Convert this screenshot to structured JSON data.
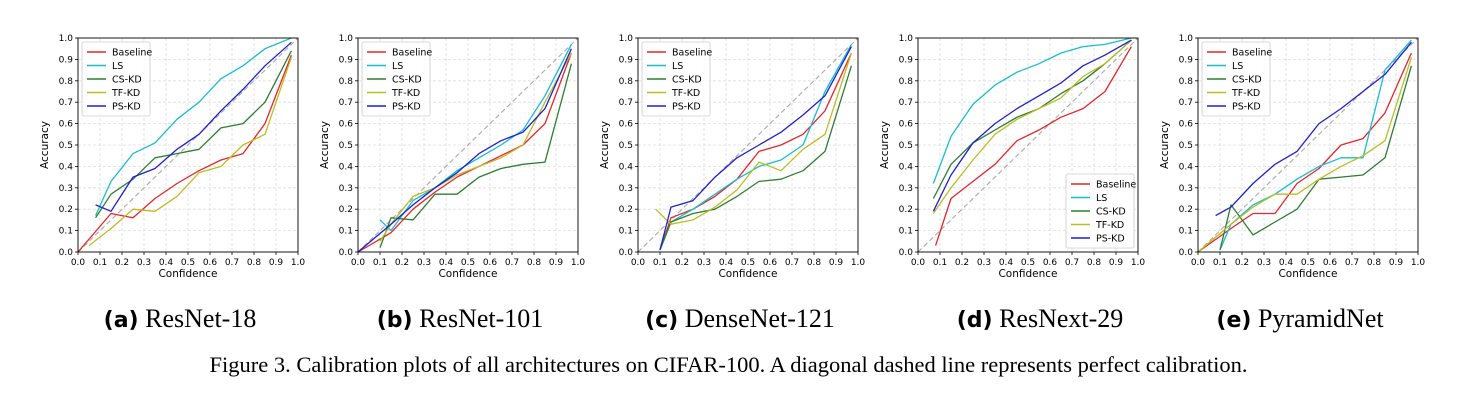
{
  "figure_caption": "Figure 3. Calibration plots of all architectures on CIFAR-100. A diagonal dashed line represents perfect calibration.",
  "colors": {
    "Baseline": "#e8252a",
    "LS": "#17becf",
    "CS-KD": "#2e7d32",
    "TF-KD": "#bcbd22",
    "PS-KD": "#1f1fd0",
    "diagonal": "#aaaaaa",
    "grid": "#dddddd"
  },
  "chart_data": [
    {
      "type": "line",
      "label": "(a)",
      "title": "ResNet-18",
      "xlabel": "Confidence",
      "ylabel": "Accuracy",
      "xlim": [
        0,
        1
      ],
      "ylim": [
        0,
        1
      ],
      "xticks": [
        "0.0",
        "0.1",
        "0.2",
        "0.3",
        "0.4",
        "0.5",
        "0.6",
        "0.7",
        "0.8",
        "0.9",
        "1.0"
      ],
      "yticks": [
        "0.0",
        "0.1",
        "0.2",
        "0.3",
        "0.4",
        "0.5",
        "0.6",
        "0.7",
        "0.8",
        "0.9",
        "1.0"
      ],
      "grid": true,
      "legend_position": "top-left",
      "series": [
        {
          "name": "Baseline",
          "x": [
            0.0,
            0.15,
            0.25,
            0.35,
            0.45,
            0.55,
            0.65,
            0.75,
            0.85,
            0.97
          ],
          "y": [
            0.0,
            0.18,
            0.16,
            0.25,
            0.32,
            0.38,
            0.43,
            0.46,
            0.6,
            0.92
          ]
        },
        {
          "name": "LS",
          "x": [
            0.08,
            0.15,
            0.25,
            0.35,
            0.45,
            0.55,
            0.65,
            0.75,
            0.85,
            0.97
          ],
          "y": [
            0.17,
            0.33,
            0.46,
            0.51,
            0.62,
            0.7,
            0.81,
            0.87,
            0.95,
            1.0
          ]
        },
        {
          "name": "CS-KD",
          "x": [
            0.08,
            0.15,
            0.25,
            0.35,
            0.45,
            0.55,
            0.65,
            0.75,
            0.85,
            0.97
          ],
          "y": [
            0.16,
            0.27,
            0.34,
            0.44,
            0.46,
            0.48,
            0.58,
            0.6,
            0.7,
            0.94
          ]
        },
        {
          "name": "TF-KD",
          "x": [
            0.05,
            0.15,
            0.25,
            0.35,
            0.45,
            0.55,
            0.65,
            0.75,
            0.85,
            0.97
          ],
          "y": [
            0.03,
            0.11,
            0.2,
            0.19,
            0.26,
            0.37,
            0.4,
            0.5,
            0.55,
            0.91
          ]
        },
        {
          "name": "PS-KD",
          "x": [
            0.08,
            0.15,
            0.25,
            0.35,
            0.45,
            0.55,
            0.65,
            0.75,
            0.85,
            0.97
          ],
          "y": [
            0.22,
            0.19,
            0.35,
            0.39,
            0.48,
            0.55,
            0.66,
            0.76,
            0.87,
            0.98
          ]
        }
      ]
    },
    {
      "type": "line",
      "label": "(b)",
      "title": "ResNet-101",
      "xlabel": "Confidence",
      "ylabel": "Accuracy",
      "xlim": [
        0,
        1
      ],
      "ylim": [
        0,
        1
      ],
      "xticks": [
        "0.0",
        "0.1",
        "0.2",
        "0.3",
        "0.4",
        "0.5",
        "0.6",
        "0.7",
        "0.8",
        "0.9",
        "1.0"
      ],
      "yticks": [
        "0.0",
        "0.1",
        "0.2",
        "0.3",
        "0.4",
        "0.5",
        "0.6",
        "0.7",
        "0.8",
        "0.9",
        "1.0"
      ],
      "grid": true,
      "legend_position": "top-left",
      "series": [
        {
          "name": "Baseline",
          "x": [
            0.0,
            0.15,
            0.25,
            0.35,
            0.45,
            0.55,
            0.65,
            0.75,
            0.85,
            0.97
          ],
          "y": [
            0.0,
            0.09,
            0.2,
            0.28,
            0.35,
            0.4,
            0.45,
            0.5,
            0.6,
            0.93
          ]
        },
        {
          "name": "LS",
          "x": [
            0.1,
            0.15,
            0.25,
            0.35,
            0.45,
            0.55,
            0.65,
            0.75,
            0.85,
            0.97
          ],
          "y": [
            0.15,
            0.1,
            0.24,
            0.3,
            0.38,
            0.44,
            0.5,
            0.57,
            0.73,
            0.97
          ]
        },
        {
          "name": "CS-KD",
          "x": [
            0.1,
            0.15,
            0.25,
            0.35,
            0.45,
            0.55,
            0.65,
            0.75,
            0.85,
            0.97
          ],
          "y": [
            0.02,
            0.16,
            0.15,
            0.27,
            0.27,
            0.35,
            0.39,
            0.41,
            0.42,
            0.88
          ]
        },
        {
          "name": "TF-KD",
          "x": [
            0.1,
            0.15,
            0.25,
            0.35,
            0.45,
            0.55,
            0.65,
            0.75,
            0.85,
            0.97
          ],
          "y": [
            0.05,
            0.13,
            0.26,
            0.3,
            0.36,
            0.4,
            0.44,
            0.5,
            0.7,
            0.93
          ]
        },
        {
          "name": "PS-KD",
          "x": [
            0.0,
            0.15,
            0.25,
            0.35,
            0.45,
            0.55,
            0.65,
            0.75,
            0.85,
            0.97
          ],
          "y": [
            0.0,
            0.13,
            0.22,
            0.3,
            0.37,
            0.46,
            0.52,
            0.56,
            0.67,
            0.95
          ]
        }
      ]
    },
    {
      "type": "line",
      "label": "(c)",
      "title": "DenseNet-121",
      "xlabel": "Confidence",
      "ylabel": "Accuracy",
      "xlim": [
        0,
        1
      ],
      "ylim": [
        0,
        1
      ],
      "xticks": [
        "0.0",
        "0.1",
        "0.2",
        "0.3",
        "0.4",
        "0.5",
        "0.6",
        "0.7",
        "0.8",
        "0.9",
        "1.0"
      ],
      "yticks": [
        "0.0",
        "0.1",
        "0.2",
        "0.3",
        "0.4",
        "0.5",
        "0.6",
        "0.7",
        "0.8",
        "0.9",
        "1.0"
      ],
      "grid": true,
      "legend_position": "top-left",
      "series": [
        {
          "name": "Baseline",
          "x": [
            0.1,
            0.15,
            0.25,
            0.35,
            0.45,
            0.55,
            0.65,
            0.75,
            0.85,
            0.97
          ],
          "y": [
            0.01,
            0.16,
            0.2,
            0.26,
            0.34,
            0.47,
            0.5,
            0.55,
            0.66,
            0.93
          ]
        },
        {
          "name": "LS",
          "x": [
            0.1,
            0.15,
            0.25,
            0.35,
            0.45,
            0.55,
            0.65,
            0.75,
            0.85,
            0.97
          ],
          "y": [
            0.01,
            0.14,
            0.2,
            0.27,
            0.34,
            0.4,
            0.43,
            0.5,
            0.75,
            0.97
          ]
        },
        {
          "name": "CS-KD",
          "x": [
            0.1,
            0.15,
            0.25,
            0.35,
            0.45,
            0.55,
            0.65,
            0.75,
            0.85,
            0.97
          ],
          "y": [
            0.01,
            0.14,
            0.18,
            0.2,
            0.26,
            0.33,
            0.34,
            0.38,
            0.47,
            0.87
          ]
        },
        {
          "name": "TF-KD",
          "x": [
            0.08,
            0.15,
            0.25,
            0.35,
            0.45,
            0.55,
            0.65,
            0.75,
            0.85,
            0.97
          ],
          "y": [
            0.2,
            0.13,
            0.15,
            0.21,
            0.29,
            0.42,
            0.38,
            0.48,
            0.55,
            0.93
          ]
        },
        {
          "name": "PS-KD",
          "x": [
            0.1,
            0.15,
            0.25,
            0.35,
            0.45,
            0.55,
            0.65,
            0.75,
            0.85,
            0.97
          ],
          "y": [
            0.01,
            0.21,
            0.24,
            0.35,
            0.44,
            0.5,
            0.56,
            0.64,
            0.73,
            0.96
          ]
        }
      ]
    },
    {
      "type": "line",
      "label": "(d)",
      "title": "ResNext-29",
      "xlabel": "Confidence",
      "ylabel": "Accuracy",
      "xlim": [
        0,
        1
      ],
      "ylim": [
        0,
        1
      ],
      "xticks": [
        "0.0",
        "0.1",
        "0.2",
        "0.3",
        "0.4",
        "0.5",
        "0.6",
        "0.7",
        "0.8",
        "0.9",
        "1.0"
      ],
      "yticks": [
        "0.0",
        "0.1",
        "0.2",
        "0.3",
        "0.4",
        "0.5",
        "0.6",
        "0.7",
        "0.8",
        "0.9",
        "1.0"
      ],
      "grid": true,
      "legend_position": "bottom-right",
      "series": [
        {
          "name": "Baseline",
          "x": [
            0.08,
            0.15,
            0.25,
            0.35,
            0.45,
            0.55,
            0.65,
            0.75,
            0.85,
            0.97
          ],
          "y": [
            0.03,
            0.25,
            0.33,
            0.41,
            0.52,
            0.57,
            0.63,
            0.67,
            0.75,
            0.96
          ]
        },
        {
          "name": "LS",
          "x": [
            0.07,
            0.15,
            0.25,
            0.35,
            0.45,
            0.55,
            0.65,
            0.75,
            0.85,
            0.97
          ],
          "y": [
            0.32,
            0.54,
            0.69,
            0.78,
            0.84,
            0.88,
            0.93,
            0.96,
            0.97,
            1.0
          ]
        },
        {
          "name": "CS-KD",
          "x": [
            0.07,
            0.15,
            0.25,
            0.35,
            0.45,
            0.55,
            0.65,
            0.75,
            0.85,
            0.97
          ],
          "y": [
            0.25,
            0.41,
            0.51,
            0.57,
            0.63,
            0.67,
            0.74,
            0.8,
            0.88,
            0.99
          ]
        },
        {
          "name": "TF-KD",
          "x": [
            0.07,
            0.15,
            0.25,
            0.35,
            0.45,
            0.55,
            0.65,
            0.75,
            0.85,
            0.97
          ],
          "y": [
            0.18,
            0.3,
            0.43,
            0.55,
            0.62,
            0.67,
            0.72,
            0.82,
            0.88,
            0.99
          ]
        },
        {
          "name": "PS-KD",
          "x": [
            0.07,
            0.15,
            0.25,
            0.35,
            0.45,
            0.55,
            0.65,
            0.75,
            0.85,
            0.97
          ],
          "y": [
            0.19,
            0.36,
            0.51,
            0.6,
            0.67,
            0.73,
            0.79,
            0.87,
            0.92,
            0.99
          ]
        }
      ]
    },
    {
      "type": "line",
      "label": "(e)",
      "title": "PyramidNet",
      "xlabel": "Confidence",
      "ylabel": "Accuracy",
      "xlim": [
        0,
        1
      ],
      "ylim": [
        0,
        1
      ],
      "xticks": [
        "0.0",
        "0.1",
        "0.2",
        "0.3",
        "0.4",
        "0.5",
        "0.6",
        "0.7",
        "0.8",
        "0.9",
        "1.0"
      ],
      "yticks": [
        "0.0",
        "0.1",
        "0.2",
        "0.3",
        "0.4",
        "0.5",
        "0.6",
        "0.7",
        "0.8",
        "0.9",
        "1.0"
      ],
      "grid": true,
      "legend_position": "top-left",
      "series": [
        {
          "name": "Baseline",
          "x": [
            0.0,
            0.15,
            0.25,
            0.35,
            0.45,
            0.55,
            0.65,
            0.75,
            0.85,
            0.97
          ],
          "y": [
            0.0,
            0.11,
            0.18,
            0.18,
            0.32,
            0.39,
            0.5,
            0.53,
            0.65,
            0.93
          ]
        },
        {
          "name": "LS",
          "x": [
            0.1,
            0.15,
            0.25,
            0.35,
            0.45,
            0.55,
            0.65,
            0.75,
            0.85,
            0.97
          ],
          "y": [
            0.01,
            0.13,
            0.22,
            0.27,
            0.34,
            0.4,
            0.44,
            0.44,
            0.85,
            0.99
          ]
        },
        {
          "name": "CS-KD",
          "x": [
            0.1,
            0.15,
            0.25,
            0.35,
            0.45,
            0.55,
            0.65,
            0.75,
            0.85,
            0.97
          ],
          "y": [
            0.01,
            0.22,
            0.08,
            0.14,
            0.2,
            0.34,
            0.35,
            0.36,
            0.44,
            0.87
          ]
        },
        {
          "name": "TF-KD",
          "x": [
            0.0,
            0.15,
            0.25,
            0.35,
            0.45,
            0.55,
            0.65,
            0.75,
            0.85,
            0.97
          ],
          "y": [
            0.0,
            0.13,
            0.21,
            0.27,
            0.27,
            0.34,
            0.4,
            0.45,
            0.52,
            0.91
          ]
        },
        {
          "name": "PS-KD",
          "x": [
            0.08,
            0.15,
            0.25,
            0.35,
            0.45,
            0.55,
            0.65,
            0.75,
            0.85,
            0.97
          ],
          "y": [
            0.17,
            0.21,
            0.32,
            0.41,
            0.47,
            0.6,
            0.67,
            0.75,
            0.83,
            0.98
          ]
        }
      ]
    }
  ]
}
